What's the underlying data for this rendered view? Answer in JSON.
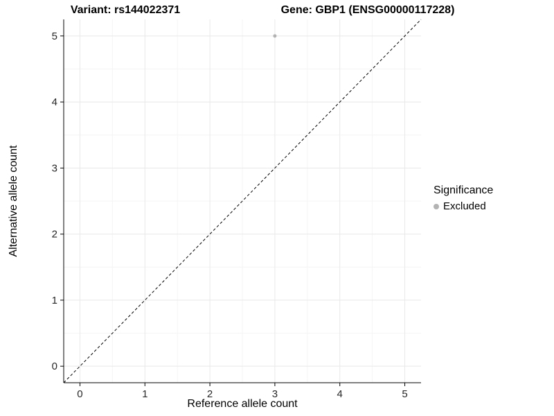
{
  "chart_data": {
    "type": "scatter",
    "titles": {
      "variant": "Variant: rs144022371",
      "gene": "Gene: GBP1 (ENSG00000117228)"
    },
    "xlabel": "Reference allele count",
    "ylabel": "Alternative allele count",
    "xlim": [
      -0.25,
      5.25
    ],
    "ylim": [
      -0.25,
      5.25
    ],
    "xticks": [
      0,
      1,
      2,
      3,
      4,
      5
    ],
    "yticks": [
      0,
      1,
      2,
      3,
      4,
      5
    ],
    "grid": "major+minor",
    "identity_line": {
      "shown": true,
      "style": "dashed",
      "from": [
        -0.25,
        -0.25
      ],
      "to": [
        5.25,
        5.25
      ]
    },
    "points": [
      {
        "x": 3,
        "y": 5,
        "series": "Excluded"
      }
    ],
    "legend": {
      "position": "right",
      "title": "Significance",
      "items": [
        {
          "label": "Excluded",
          "color": "#b3b3b3"
        }
      ]
    }
  },
  "colors": {
    "point": "#b3b3b3",
    "grid_major": "#e8e8e8",
    "grid_minor": "#f4f4f4",
    "axis_line": "#000000",
    "tick_text": "#262626",
    "background": "#ffffff"
  }
}
